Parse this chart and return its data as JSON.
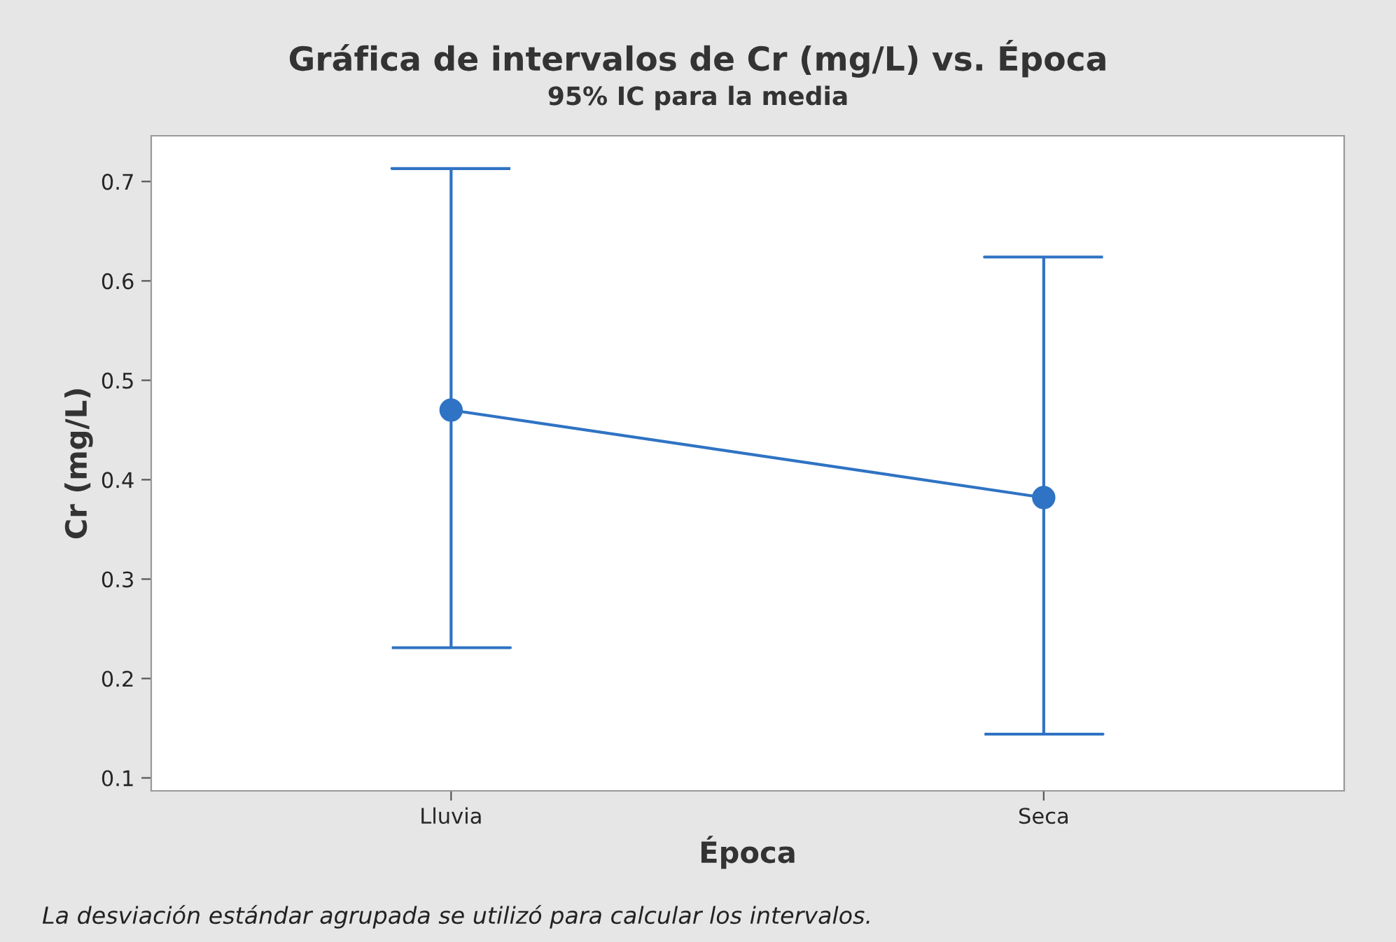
{
  "chart_data": {
    "type": "line",
    "title": "Gráfica de intervalos de Cr (mg/L) vs. Época",
    "subtitle": "95% IC para la media",
    "xlabel": "Época",
    "ylabel": "Cr (mg/L)",
    "categories": [
      "Lluvia",
      "Seca"
    ],
    "color": "#2f73c4",
    "values": [
      0.47,
      0.382
    ],
    "errors": [
      [
        0.231,
        0.713
      ],
      [
        0.144,
        0.624
      ]
    ],
    "ylim": [
      0.087,
      0.746
    ],
    "yticks": [
      0.1,
      0.2,
      0.3,
      0.4,
      0.5,
      0.6,
      0.7
    ],
    "marker": "circle",
    "line_style": "solid",
    "grid": false,
    "legend": false,
    "annotations": [
      "La desviación estándar agrupada se utilizó para calcular los intervalos."
    ]
  }
}
